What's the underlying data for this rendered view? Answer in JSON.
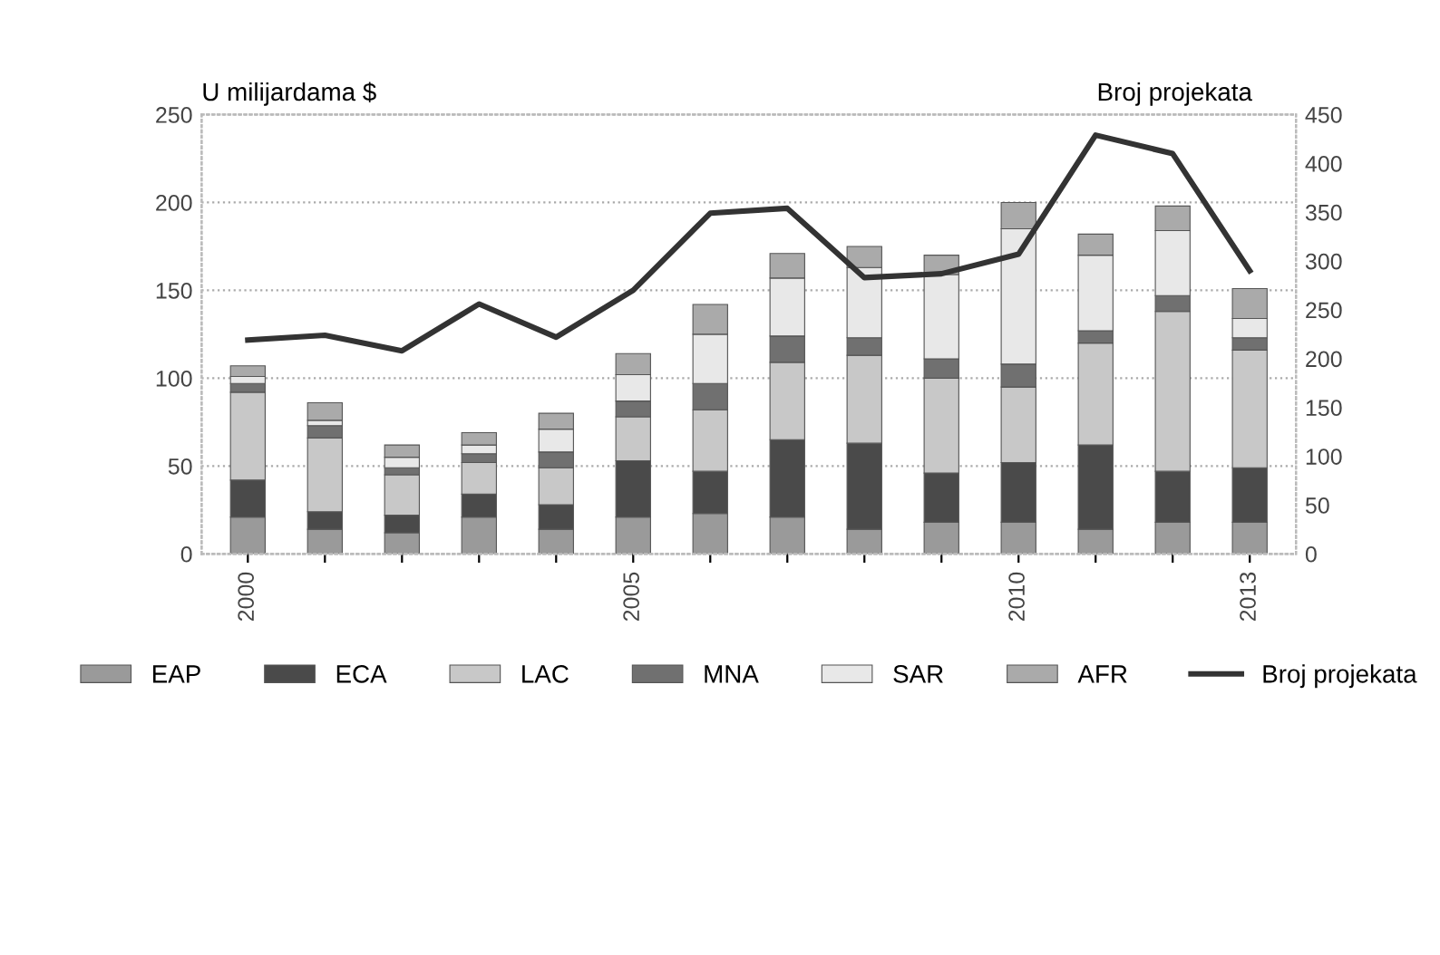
{
  "chart_data": {
    "type": "bar",
    "stacked": true,
    "ylabel": "U milijardama $",
    "y2label": "Broj projekata",
    "categories": [
      "2000",
      null,
      null,
      null,
      null,
      "2005",
      null,
      null,
      null,
      null,
      "2010",
      null,
      null,
      "2013"
    ],
    "series": [
      {
        "name": "EAP",
        "color": "#9a9a9a",
        "values": [
          21,
          14,
          12,
          21,
          14,
          21,
          23,
          21,
          14,
          18,
          18,
          14,
          18,
          18
        ]
      },
      {
        "name": "ECA",
        "color": "#4a4a4a",
        "values": [
          21,
          10,
          10,
          13,
          14,
          32,
          24,
          44,
          49,
          28,
          34,
          48,
          29,
          31
        ]
      },
      {
        "name": "LAC",
        "color": "#c8c8c8",
        "values": [
          50,
          42,
          23,
          18,
          21,
          25,
          35,
          44,
          50,
          54,
          43,
          58,
          91,
          67
        ]
      },
      {
        "name": "MNA",
        "color": "#707070",
        "values": [
          5,
          7,
          4,
          5,
          9,
          9,
          15,
          15,
          10,
          11,
          13,
          7,
          9,
          7
        ]
      },
      {
        "name": "SAR",
        "color": "#e8e8e8",
        "values": [
          4,
          3,
          6,
          5,
          13,
          15,
          28,
          33,
          40,
          48,
          77,
          43,
          37,
          11
        ]
      },
      {
        "name": "AFR",
        "color": "#aaaaaa",
        "values": [
          6,
          10,
          7,
          7,
          9,
          12,
          17,
          14,
          12,
          11,
          15,
          12,
          14,
          17
        ]
      },
      {
        "name": "Broj projekata",
        "type": "line",
        "axis": "y2",
        "color": "#333333",
        "values": [
          219,
          224,
          208,
          256,
          222,
          270,
          349,
          354,
          283,
          287,
          307,
          429,
          410,
          290
        ]
      }
    ],
    "ylim": [
      0,
      250
    ],
    "yticks": [
      0,
      50,
      100,
      150,
      200,
      250
    ],
    "y2lim": [
      0,
      450
    ],
    "y2ticks": [
      0,
      50,
      100,
      150,
      200,
      250,
      300,
      350,
      400,
      450
    ],
    "grid": "y",
    "legend": "bottom",
    "marker": "none",
    "line_style": "solid"
  }
}
